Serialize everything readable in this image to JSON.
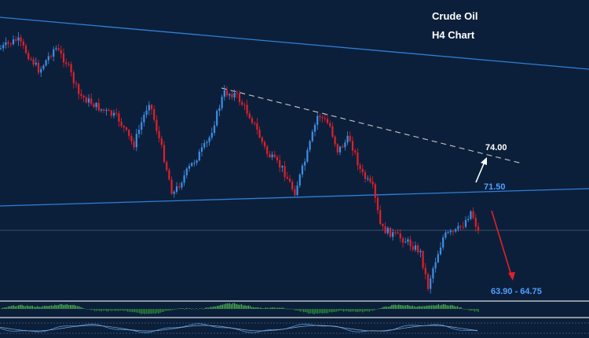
{
  "chart_data": {
    "type": "candlestick",
    "title_line1": "Crude Oil",
    "title_line2": "H4  Chart",
    "colors": {
      "background": "#0c1f3a",
      "bull": "#3d8fe6",
      "bear": "#e0202a",
      "trendline": "#2f7fd8",
      "resistance_dashed": "#c8c8c8",
      "target_up": "#ffffff",
      "target_down": "#e0202a",
      "macd_pos": "#4caf50",
      "macd_neg": "#2e8b3a"
    },
    "levels": {
      "target_up_label": "74.00",
      "support_label": "71.50",
      "target_down_label": "63.90 - 64.75"
    },
    "annotations": [
      {
        "name": "upper-channel-line",
        "kind": "trendline"
      },
      {
        "name": "support-trendline",
        "kind": "trendline",
        "label": "71.50"
      },
      {
        "name": "descending-resistance",
        "kind": "dashed-trendline"
      },
      {
        "name": "up-arrow",
        "kind": "arrow",
        "target": "74.00"
      },
      {
        "name": "down-arrow",
        "kind": "arrow",
        "target": "63.90 - 64.75"
      }
    ],
    "series": [
      {
        "name": "price",
        "path": [
          [
            0,
            62
          ],
          [
            22,
            50
          ],
          [
            50,
            90
          ],
          [
            70,
            60
          ],
          [
            85,
            80
          ],
          [
            100,
            120
          ],
          [
            130,
            140
          ],
          [
            150,
            150
          ],
          [
            170,
            185
          ],
          [
            190,
            128
          ],
          [
            210,
            205
          ],
          [
            220,
            248
          ],
          [
            240,
            215
          ],
          [
            265,
            180
          ],
          [
            285,
            118
          ],
          [
            300,
            120
          ],
          [
            320,
            150
          ],
          [
            340,
            195
          ],
          [
            360,
            215
          ],
          [
            375,
            245
          ],
          [
            390,
            200
          ],
          [
            405,
            145
          ],
          [
            420,
            160
          ],
          [
            430,
            192
          ],
          [
            445,
            175
          ],
          [
            460,
            220
          ],
          [
            475,
            240
          ],
          [
            485,
            290
          ],
          [
            500,
            298
          ],
          [
            515,
            305
          ],
          [
            535,
            320
          ],
          [
            545,
            365
          ],
          [
            550,
            345
          ],
          [
            565,
            300
          ],
          [
            580,
            295
          ],
          [
            590,
            285
          ],
          [
            600,
            268
          ],
          [
            610,
            298
          ]
        ]
      }
    ],
    "indicator": {
      "type": "macd-histogram",
      "grid": false
    }
  }
}
